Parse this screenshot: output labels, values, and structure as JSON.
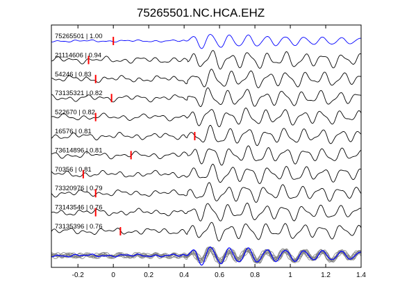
{
  "chart_data": {
    "type": "line",
    "title": "75265501.NC.HCA.EHZ",
    "xlabel": "",
    "ylabel": "",
    "xlim": [
      -0.35,
      1.4
    ],
    "xticks": [
      -0.2,
      0,
      0.2,
      0.4,
      0.6,
      0.8,
      1,
      1.2,
      1.4
    ],
    "xtick_labels": [
      "-0.2",
      "0",
      "0.2",
      "0.4",
      "0.6",
      "0.8",
      "1",
      "1.2",
      "1.4"
    ],
    "grid": false,
    "legend": "none",
    "colors": {
      "reference_trace": "#0000ff",
      "traces": "#000000",
      "pick_marker": "#ff0000",
      "stack_traces": "#808080"
    },
    "traces": [
      {
        "label": "75265501 | 1.00",
        "pick_time": 0.0
      },
      {
        "label": "21114606 | 0.94",
        "pick_time": -0.14
      },
      {
        "label": "54246 | 0.83",
        "pick_time": -0.1
      },
      {
        "label": "73135321 | 0.82",
        "pick_time": -0.01
      },
      {
        "label": "522670 | 0.82",
        "pick_time": -0.1
      },
      {
        "label": "16576 | 0.81",
        "pick_time": 0.46
      },
      {
        "label": "73614896 | 0.81",
        "pick_time": 0.1
      },
      {
        "label": "70356 | 0.81",
        "pick_time": -0.17
      },
      {
        "label": "73320976 | 0.79",
        "pick_time": -0.1
      },
      {
        "label": "73143546 | 0.76",
        "pick_time": -0.1
      },
      {
        "label": "73135396 | 0.76",
        "pick_time": 0.04
      }
    ]
  }
}
